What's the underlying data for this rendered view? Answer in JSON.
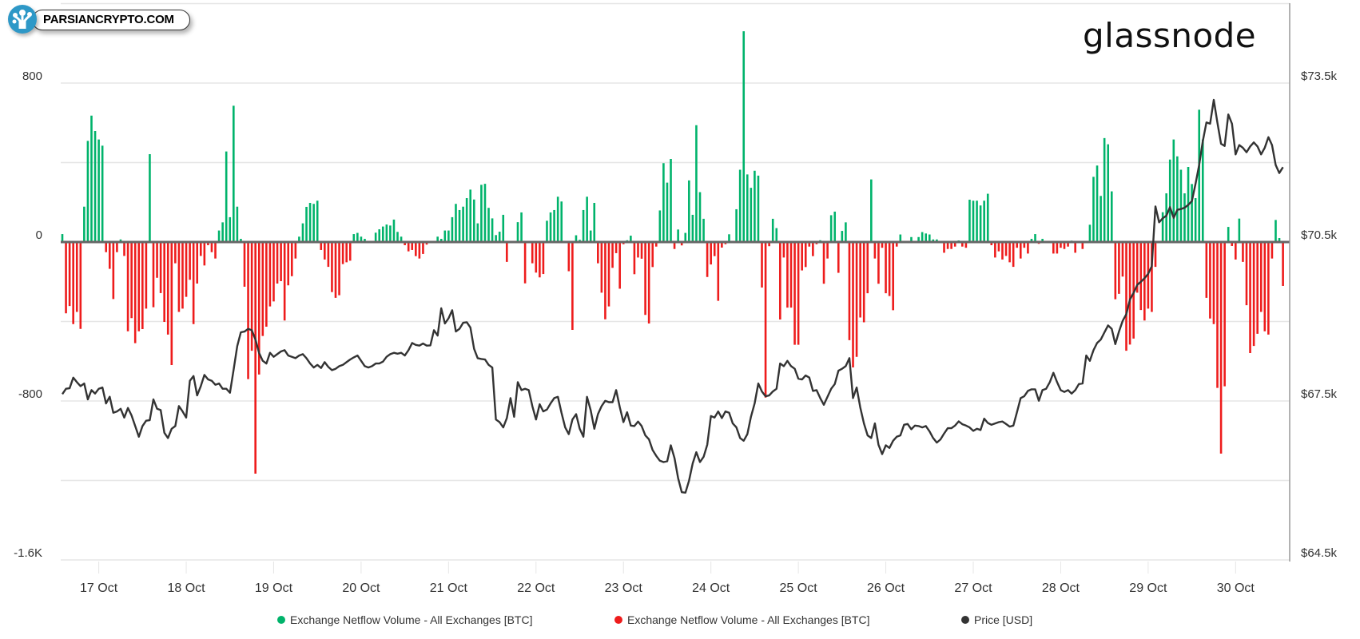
{
  "watermark": {
    "text": "PARSIANCRYPTO.COM"
  },
  "brand": {
    "text": "glassnode"
  },
  "chart_data": {
    "type": "bar",
    "x_start": "16 Oct 14:00",
    "x_interval": "1h",
    "x_ticks": [
      "17 Oct",
      "18 Oct",
      "19 Oct",
      "20 Oct",
      "21 Oct",
      "22 Oct",
      "23 Oct",
      "24 Oct",
      "25 Oct",
      "26 Oct",
      "27 Oct",
      "28 Oct",
      "29 Oct",
      "30 Oct"
    ],
    "y_left": {
      "ticks": [
        "800",
        "0",
        "-800",
        "-1.6K"
      ],
      "tick_values": [
        800,
        0,
        -800,
        -1600
      ],
      "range": [
        -1600,
        1200
      ]
    },
    "y_right": {
      "ticks": [
        "$73.5k",
        "$70.5k",
        "$67.5k",
        "$64.5k"
      ],
      "tick_values": [
        73500,
        70500,
        67500,
        64500
      ],
      "range": [
        64500,
        76500
      ]
    },
    "grid": true,
    "legend_position": "bottom",
    "legend": [
      {
        "label": "Exchange Netflow Volume - All Exchanges [BTC]",
        "color": "#00b36b"
      },
      {
        "label": "Exchange Netflow Volume - All Exchanges [BTC]",
        "color": "#ee1c1c"
      },
      {
        "label": "Price [USD]",
        "color": "#333333"
      }
    ],
    "series": [
      {
        "name": "Exchange Netflow Volume - All Exchanges [BTC]",
        "type": "bar",
        "sign": "positive",
        "color": "#00b36b"
      },
      {
        "name": "Exchange Netflow Volume - All Exchanges [BTC]",
        "type": "bar",
        "sign": "negative",
        "color": "#ee1c1c"
      },
      {
        "name": "Price [USD]",
        "type": "line",
        "axis": "right",
        "color": "#333333",
        "values": [
          67630,
          67730,
          67740,
          67940,
          67856,
          67780,
          67830,
          67530,
          67705,
          67640,
          67730,
          67755,
          67454,
          67580,
          67278,
          67303,
          67353,
          67187,
          67368,
          67228,
          67027,
          66825,
          67027,
          67127,
          67137,
          67530,
          67353,
          67328,
          66900,
          66800,
          66976,
          67027,
          67404,
          67303,
          67187,
          67881,
          67971,
          67605,
          67780,
          67992,
          67907,
          67881,
          67806,
          67830,
          67730,
          67730,
          67655,
          68083,
          68535,
          68796,
          68810,
          68861,
          68836,
          68660,
          68409,
          68258,
          68207,
          68409,
          68333,
          68383,
          68434,
          68459,
          68358,
          68333,
          68308,
          68358,
          68383,
          68308,
          68207,
          68132,
          68182,
          68122,
          68232,
          68142,
          68082,
          68107,
          68157,
          68182,
          68232,
          68283,
          68323,
          68358,
          68258,
          68157,
          68132,
          68157,
          68207,
          68207,
          68243,
          68333,
          68383,
          68409,
          68393,
          68409,
          68358,
          68459,
          68594,
          68559,
          68544,
          68584,
          68544,
          68550,
          68836,
          68735,
          69248,
          68962,
          69062,
          69213,
          68811,
          68861,
          68976,
          68986,
          68886,
          68484,
          68308,
          68293,
          68283,
          68182,
          68132,
          67151,
          67101,
          67001,
          67177,
          67554,
          67202,
          67855,
          67705,
          67730,
          67705,
          67403,
          67151,
          67438,
          67302,
          67338,
          67453,
          67554,
          67579,
          67277,
          67001,
          66875,
          67151,
          67252,
          66976,
          66825,
          67579,
          67327,
          66976,
          67252,
          67403,
          67503,
          67478,
          67478,
          67705,
          67380,
          67101,
          67287,
          67036,
          67026,
          67111,
          67026,
          66850,
          66775,
          66574,
          66463,
          66373,
          66347,
          66362,
          66664,
          66423,
          66046,
          65779,
          65769,
          65996,
          66322,
          66534,
          66347,
          66448,
          66674,
          67217,
          67187,
          67302,
          67177,
          67302,
          67277,
          67076,
          67001,
          66800,
          66749,
          66875,
          67202,
          67453,
          67830,
          67679,
          67589,
          67604,
          67679,
          67730,
          68207,
          68157,
          68257,
          68157,
          68107,
          67921,
          67906,
          67981,
          67941,
          67690,
          67705,
          67554,
          67428,
          67579,
          67730,
          67820,
          68072,
          68107,
          68157,
          68308,
          67554,
          67755,
          67378,
          67076,
          66850,
          66800,
          67076,
          66674,
          66498,
          66664,
          66614,
          66749,
          66825,
          66850,
          67051,
          67066,
          66966,
          67036,
          67026,
          67001,
          67026,
          66926,
          66800,
          66714,
          66775,
          66885,
          66986,
          66986,
          67036,
          67116,
          67061,
          67036,
          67001,
          66936,
          66976,
          66951,
          67167,
          67086,
          67051,
          67076,
          67101,
          67112,
          67066,
          67016,
          67036,
          67287,
          67554,
          67589,
          67690,
          67720,
          67720,
          67504,
          67705,
          67730,
          67856,
          68032,
          67856,
          67705,
          67670,
          67705,
          67640,
          67705,
          67820,
          67830,
          68358,
          68258,
          68459,
          68594,
          68660,
          68795,
          68926,
          68861,
          68574,
          68811,
          69012,
          69137,
          69414,
          69540,
          69690,
          69751,
          69816,
          69901,
          70042,
          71173,
          70872,
          70947,
          70997,
          71158,
          70957,
          71108,
          71123,
          71148,
          71199,
          71274,
          71601,
          71953,
          72405,
          72757,
          72732,
          73184,
          72757,
          72355,
          72314,
          72908,
          72732,
          72154,
          72330,
          72279,
          72194,
          72304,
          72380,
          72304,
          72154,
          72279,
          72480,
          72330,
          71953,
          71802,
          71912
        ]
      }
    ],
    "netflow_values": [
      40,
      -359,
      -322,
      -413,
      -352,
      -437,
      178,
      509,
      636,
      559,
      516,
      485,
      -51,
      -135,
      -287,
      -51,
      13,
      -70,
      -449,
      -383,
      -509,
      -449,
      -438,
      -335,
      442,
      -328,
      -180,
      -257,
      -402,
      -466,
      -619,
      -107,
      -352,
      -335,
      -276,
      -190,
      -413,
      -209,
      -70,
      -118,
      -16,
      -51,
      -83,
      58,
      99,
      456,
      125,
      686,
      178,
      16,
      -225,
      -690,
      -547,
      -1166,
      -667,
      -473,
      -426,
      -324,
      -299,
      -209,
      -197,
      -395,
      -218,
      -172,
      -83,
      27,
      94,
      177,
      197,
      192,
      208,
      -40,
      -88,
      -125,
      -252,
      -281,
      -268,
      -111,
      -102,
      -94,
      40,
      46,
      27,
      16,
      5,
      0,
      47,
      64,
      78,
      88,
      83,
      113,
      51,
      27,
      -16,
      -47,
      -40,
      -71,
      -83,
      -60,
      -13,
      6,
      0,
      27,
      16,
      58,
      58,
      125,
      192,
      161,
      178,
      221,
      264,
      214,
      94,
      288,
      293,
      172,
      119,
      35,
      52,
      137,
      -100,
      0,
      4,
      100,
      149,
      -208,
      0,
      -107,
      -154,
      -178,
      -161,
      107,
      149,
      161,
      228,
      204,
      0,
      -147,
      -442,
      34,
      11,
      161,
      228,
      58,
      197,
      -107,
      -255,
      -389,
      -324,
      -130,
      -56,
      -235,
      -11,
      9,
      32,
      -162,
      -78,
      -84,
      -367,
      -410,
      -126,
      -23,
      159,
      397,
      299,
      418,
      -35,
      63,
      -17,
      46,
      310,
      137,
      588,
      251,
      117,
      -176,
      -113,
      -71,
      -296,
      -28,
      -11,
      39,
      0,
      165,
      364,
      1061,
      340,
      273,
      359,
      334,
      -229,
      -783,
      -21,
      117,
      70,
      -390,
      -78,
      -330,
      -330,
      -517,
      -517,
      -143,
      -126,
      -23,
      -71,
      -11,
      9,
      -210,
      -83,
      135,
      153,
      -155,
      56,
      99,
      -494,
      -631,
      -578,
      -380,
      -404,
      -258,
      315,
      -83,
      -210,
      -29,
      -258,
      -272,
      -343,
      -23,
      38,
      0,
      0,
      25,
      0,
      25,
      50,
      43,
      38,
      13,
      13,
      0,
      -54,
      -35,
      -35,
      -23,
      8,
      -23,
      -29,
      213,
      208,
      208,
      184,
      208,
      243,
      -16,
      -78,
      -47,
      -88,
      -70,
      -102,
      -125,
      -29,
      -83,
      -29,
      -58,
      16,
      40,
      -9,
      16,
      4,
      0,
      -58,
      -58,
      -29,
      -35,
      -23,
      7,
      -54,
      0,
      -35,
      4,
      87,
      328,
      385,
      232,
      523,
      492,
      255,
      -288,
      -261,
      -174,
      -547,
      -516,
      -486,
      -255,
      -342,
      -395,
      -335,
      -352,
      -125,
      4,
      150,
      245,
      415,
      516,
      431,
      364,
      245,
      378,
      292,
      221,
      666,
      516,
      -281,
      -385,
      -413,
      -734,
      -1065,
      -726,
      76,
      -20,
      -88,
      118,
      -100,
      -318,
      -559,
      -523,
      -462,
      -352,
      -449,
      -466,
      -83,
      111,
      20,
      -221
    ]
  }
}
